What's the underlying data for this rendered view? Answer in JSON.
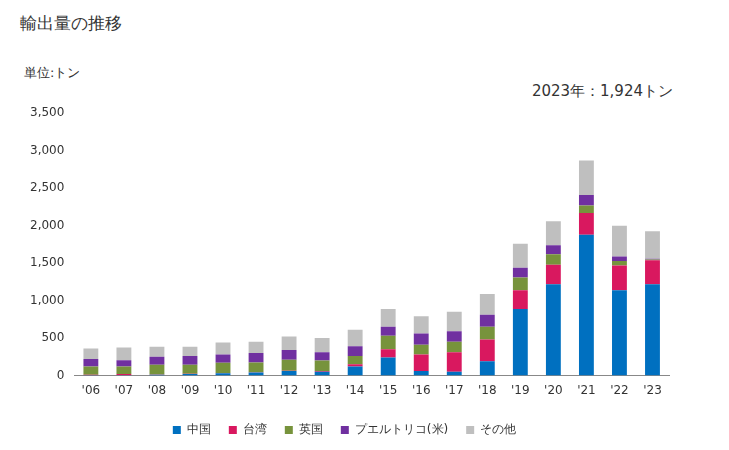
{
  "chart_data": {
    "type": "bar",
    "title": "輸出量の推移",
    "ylabel": "単位:トン",
    "annotations": [
      "2023年：1,924トン"
    ],
    "categories": [
      "'06",
      "'07",
      "'08",
      "'09",
      "'10",
      "'11",
      "'12",
      "'13",
      "'14",
      "'15",
      "'16",
      "'17",
      "'18",
      "'19",
      "'20",
      "'21",
      "'22",
      "'23"
    ],
    "series": [
      {
        "name": "中国",
        "color": "#0070c0",
        "values": [
          5,
          5,
          10,
          20,
          30,
          40,
          60,
          50,
          120,
          240,
          60,
          50,
          190,
          890,
          1220,
          1880,
          1140,
          1220
        ]
      },
      {
        "name": "台湾",
        "color": "#d9185f",
        "values": [
          5,
          15,
          5,
          5,
          5,
          5,
          5,
          10,
          30,
          110,
          220,
          260,
          290,
          250,
          260,
          290,
          330,
          320
        ]
      },
      {
        "name": "英国",
        "color": "#77933c",
        "values": [
          110,
          100,
          130,
          120,
          135,
          130,
          145,
          140,
          110,
          180,
          130,
          140,
          170,
          170,
          140,
          100,
          60,
          10
        ]
      },
      {
        "name": "プエルトリコ(米)",
        "color": "#7030a0",
        "values": [
          100,
          85,
          105,
          115,
          110,
          125,
          130,
          110,
          130,
          120,
          150,
          140,
          160,
          130,
          120,
          140,
          60,
          10
        ]
      },
      {
        "name": "その他",
        "color": "#bfbfbf",
        "values": [
          140,
          170,
          135,
          125,
          160,
          150,
          180,
          190,
          220,
          240,
          230,
          260,
          280,
          320,
          320,
          460,
          410,
          364
        ]
      }
    ],
    "stacked": true,
    "legend": "bottom",
    "grid": false,
    "ylim": [
      0,
      3500
    ],
    "yticks": [
      0,
      500,
      {
        "value": 1000,
        "label": "1,000"
      },
      {
        "value": 1500,
        "label": "1,500"
      },
      {
        "value": 2000,
        "label": "2,000"
      },
      {
        "value": 2500,
        "label": "2,500"
      },
      {
        "value": 3000,
        "label": "3,000"
      },
      {
        "value": 3500,
        "label": "3,500"
      }
    ]
  }
}
